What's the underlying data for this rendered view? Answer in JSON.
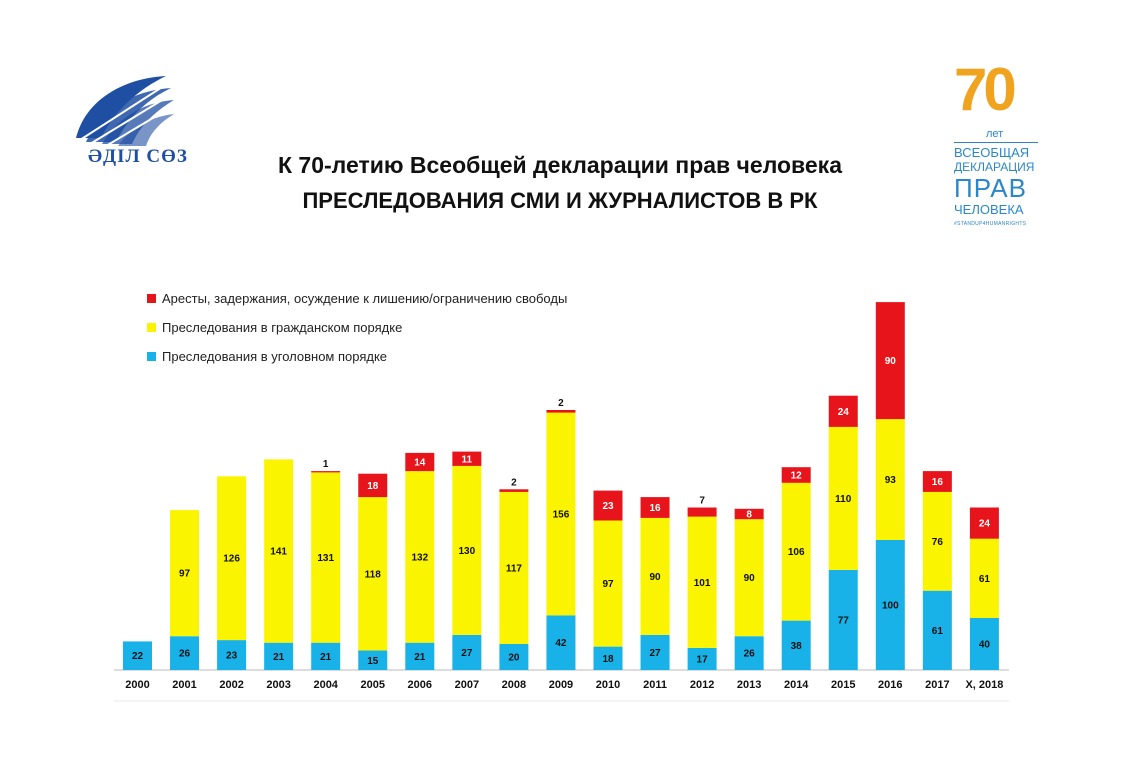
{
  "logos": {
    "left_brand": "ӘДІЛ СӨЗ",
    "right_number": "70",
    "right_let": "лет",
    "right_line1": "ВСЕОБЩАЯ",
    "right_line2": "ДЕКЛАРАЦИЯ",
    "right_line3": "ПРАВ",
    "right_line4": "ЧЕЛОВЕКА",
    "right_hashtag": "#STANDUP4HUMANRIGHTS"
  },
  "title_line1": "К 70-летию Всеобщей декларации прав человека",
  "title_line2": "ПРЕСЛЕДОВАНИЯ СМИ И ЖУРНАЛИСТОВ В РК",
  "colors": {
    "red": "#e8141b",
    "yellow": "#fbf400",
    "blue": "#18b2e8"
  },
  "chart_data": {
    "type": "bar",
    "stacked": true,
    "title": "ПРЕСЛЕДОВАНИЯ СМИ И ЖУРНАЛИСТОВ В РК",
    "categories": [
      "2000",
      "2001",
      "2002",
      "2003",
      "2004",
      "2005",
      "2006",
      "2007",
      "2008",
      "2009",
      "2010",
      "2011",
      "2012",
      "2013",
      "2014",
      "2015",
      "2016",
      "2017",
      "Х, 2018"
    ],
    "series": [
      {
        "name": "Преследования  в уголовном порядке",
        "color": "#18b2e8",
        "values": [
          22,
          26,
          23,
          21,
          21,
          15,
          21,
          27,
          20,
          42,
          18,
          27,
          17,
          26,
          38,
          77,
          100,
          61,
          40
        ]
      },
      {
        "name": "Преследования  в гражданском порядке",
        "color": "#fbf400",
        "values": [
          0,
          97,
          126,
          141,
          131,
          118,
          132,
          130,
          117,
          156,
          97,
          90,
          101,
          90,
          106,
          110,
          93,
          76,
          61
        ]
      },
      {
        "name": "Аресты, задержания,  осуждение к лишению/ограничению  свободы",
        "color": "#e8141b",
        "values": [
          0,
          0,
          0,
          0,
          1,
          18,
          14,
          11,
          2,
          2,
          23,
          16,
          7,
          8,
          12,
          24,
          90,
          16,
          24
        ]
      }
    ],
    "legend_order": [
      2,
      1,
      0
    ],
    "legend_position": "top-left",
    "grid": false,
    "ylim": [
      0,
      300
    ]
  }
}
